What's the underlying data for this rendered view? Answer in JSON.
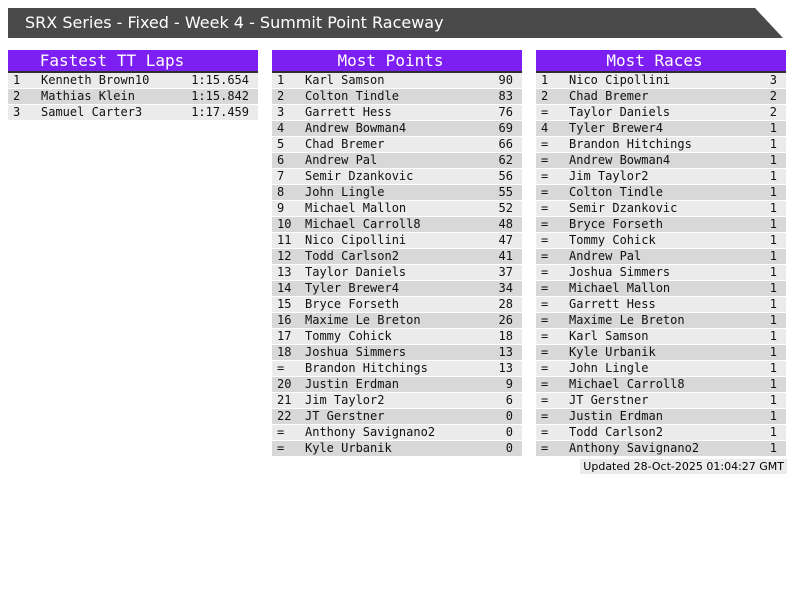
{
  "page": {
    "title": "SRX Series - Fixed - Week 4 - Summit Point Raceway",
    "updated": "Updated 28-Oct-2025 01:04:27 GMT"
  },
  "colors": {
    "accent": "#7d1ff2",
    "title_bar": "#4a4a4a",
    "row_light": "#ebebeb",
    "row_dark": "#d8d8d8"
  },
  "tables": [
    {
      "title": "Fastest TT Laps",
      "rows": [
        [
          "1",
          "Kenneth Brown10",
          "1:15.654"
        ],
        [
          "2",
          "Mathias Klein",
          "1:15.842"
        ],
        [
          "3",
          "Samuel Carter3",
          "1:17.459"
        ]
      ]
    },
    {
      "title": "Most Points",
      "rows": [
        [
          "1",
          "Karl Samson",
          "90"
        ],
        [
          "2",
          "Colton Tindle",
          "83"
        ],
        [
          "3",
          "Garrett Hess",
          "76"
        ],
        [
          "4",
          "Andrew Bowman4",
          "69"
        ],
        [
          "5",
          "Chad Bremer",
          "66"
        ],
        [
          "6",
          "Andrew Pal",
          "62"
        ],
        [
          "7",
          "Semir Dzankovic",
          "56"
        ],
        [
          "8",
          "John Lingle",
          "55"
        ],
        [
          "9",
          "Michael Mallon",
          "52"
        ],
        [
          "10",
          "Michael Carroll8",
          "48"
        ],
        [
          "11",
          "Nico Cipollini",
          "47"
        ],
        [
          "12",
          "Todd Carlson2",
          "41"
        ],
        [
          "13",
          "Taylor Daniels",
          "37"
        ],
        [
          "14",
          "Tyler Brewer4",
          "34"
        ],
        [
          "15",
          "Bryce Forseth",
          "28"
        ],
        [
          "16",
          "Maxime Le Breton",
          "26"
        ],
        [
          "17",
          "Tommy Cohick",
          "18"
        ],
        [
          "18",
          "Joshua Simmers",
          "13"
        ],
        [
          "=",
          "Brandon Hitchings",
          "13"
        ],
        [
          "20",
          "Justin Erdman",
          "9"
        ],
        [
          "21",
          "Jim Taylor2",
          "6"
        ],
        [
          "22",
          "JT Gerstner",
          "0"
        ],
        [
          "=",
          "Anthony Savignano2",
          "0"
        ],
        [
          "=",
          "Kyle Urbanik",
          "0"
        ]
      ]
    },
    {
      "title": "Most Races",
      "rows": [
        [
          "1",
          "Nico Cipollini",
          "3"
        ],
        [
          "2",
          "Chad Bremer",
          "2"
        ],
        [
          "=",
          "Taylor Daniels",
          "2"
        ],
        [
          "4",
          "Tyler Brewer4",
          "1"
        ],
        [
          "=",
          "Brandon Hitchings",
          "1"
        ],
        [
          "=",
          "Andrew Bowman4",
          "1"
        ],
        [
          "=",
          "Jim Taylor2",
          "1"
        ],
        [
          "=",
          "Colton Tindle",
          "1"
        ],
        [
          "=",
          "Semir Dzankovic",
          "1"
        ],
        [
          "=",
          "Bryce Forseth",
          "1"
        ],
        [
          "=",
          "Tommy Cohick",
          "1"
        ],
        [
          "=",
          "Andrew Pal",
          "1"
        ],
        [
          "=",
          "Joshua Simmers",
          "1"
        ],
        [
          "=",
          "Michael Mallon",
          "1"
        ],
        [
          "=",
          "Garrett Hess",
          "1"
        ],
        [
          "=",
          "Maxime Le Breton",
          "1"
        ],
        [
          "=",
          "Karl Samson",
          "1"
        ],
        [
          "=",
          "Kyle Urbanik",
          "1"
        ],
        [
          "=",
          "John Lingle",
          "1"
        ],
        [
          "=",
          "Michael Carroll8",
          "1"
        ],
        [
          "=",
          "JT Gerstner",
          "1"
        ],
        [
          "=",
          "Justin Erdman",
          "1"
        ],
        [
          "=",
          "Todd Carlson2",
          "1"
        ],
        [
          "=",
          "Anthony Savignano2",
          "1"
        ]
      ]
    }
  ]
}
